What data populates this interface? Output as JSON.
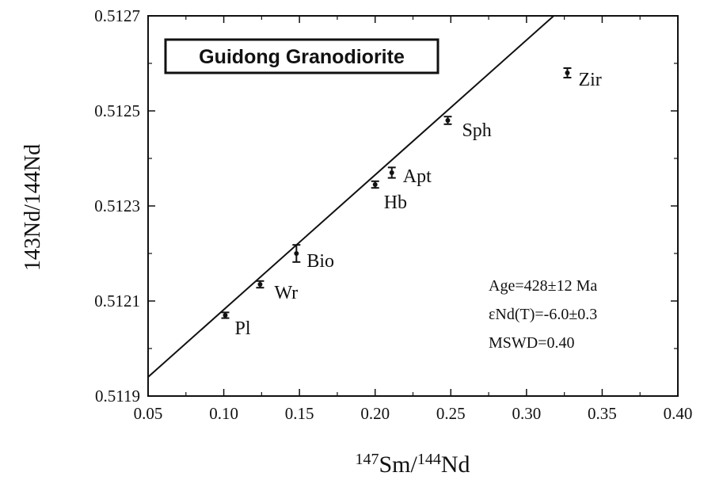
{
  "chart_data": {
    "type": "scatter",
    "title": "Guidong Granodiorite",
    "xlabel": {
      "sup1": "147",
      "base1": "Sm/",
      "sup2": "144",
      "base2": "Nd"
    },
    "ylabel": {
      "sup1": "143",
      "base1": "Nd/",
      "sup2": "144",
      "base2": "Nd"
    },
    "xlim": [
      0.05,
      0.4
    ],
    "ylim": [
      0.5119,
      0.5127
    ],
    "xticks": [
      "0.05",
      "0.10",
      "0.15",
      "0.20",
      "0.25",
      "0.30",
      "0.35",
      "0.40"
    ],
    "yticks": [
      "0.5119",
      "0.5121",
      "0.5123",
      "0.5125",
      "0.5127"
    ],
    "points": [
      {
        "label": "Pl",
        "x": 0.101,
        "y": 0.51207,
        "err": 6e-06
      },
      {
        "label": "Wr",
        "x": 0.124,
        "y": 0.512135,
        "err": 7e-06
      },
      {
        "label": "Bio",
        "x": 0.148,
        "y": 0.5122,
        "err": 1.8e-05
      },
      {
        "label": "Hb",
        "x": 0.2,
        "y": 0.512345,
        "err": 7e-06
      },
      {
        "label": "Apt",
        "x": 0.211,
        "y": 0.51237,
        "err": 1.1e-05
      },
      {
        "label": "Sph",
        "x": 0.248,
        "y": 0.51248,
        "err": 8e-06
      },
      {
        "label": "Zir",
        "x": 0.327,
        "y": 0.51258,
        "err": 1e-05
      }
    ],
    "isochron": {
      "x1": 0.05,
      "y1": 0.51194,
      "x2": 0.318,
      "y2": 0.5127
    },
    "annotations": [
      "Age=428±12 Ma",
      "εNd(T)=-6.0±0.3",
      "MSWD=0.40"
    ]
  }
}
